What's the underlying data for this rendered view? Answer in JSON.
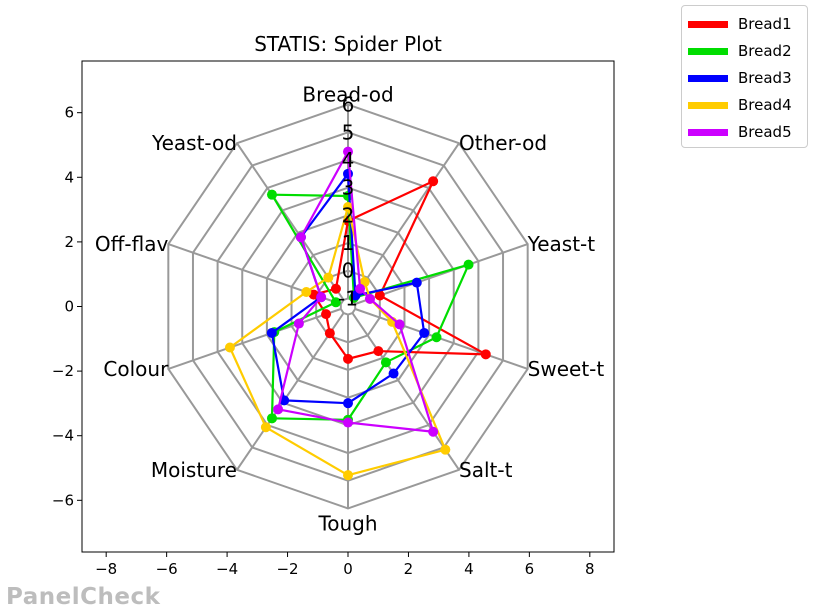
{
  "brand": "PanelCheck",
  "chart_data": {
    "type": "radar",
    "title": "STATIS: Spider Plot",
    "xlim": [
      -8.8,
      8.8
    ],
    "ylim": [
      -7.6,
      7.6
    ],
    "x_ticks": [
      -8,
      -6,
      -4,
      -2,
      0,
      2,
      4,
      6,
      8
    ],
    "y_ticks": [
      -6,
      -4,
      -2,
      0,
      2,
      4,
      6
    ],
    "x_tick_labels": [
      "−8",
      "−6",
      "−4",
      "−2",
      "0",
      "2",
      "4",
      "6",
      "8"
    ],
    "y_tick_labels": [
      "−6",
      "−4",
      "−2",
      "0",
      "2",
      "4",
      "6"
    ],
    "radial_min": -1,
    "radial_max": 6,
    "radial_ticks": [
      -1,
      0,
      1,
      2,
      3,
      4,
      5,
      6
    ],
    "radial_tick_labels": [
      "-1",
      "0",
      "1",
      "2",
      "3",
      "4",
      "5",
      "6"
    ],
    "grid": true,
    "legend_position": "outside-top-right",
    "attributes": [
      "Bread-od",
      "Other-od",
      "Yeast-t",
      "Sweet-t",
      "Salt-t",
      "Tough",
      "Moisture",
      "Colour",
      "Off-flav",
      "Yeast-od"
    ],
    "series": [
      {
        "name": "Bread1",
        "color": "#ff0000",
        "values": [
          1.8,
          4.3,
          0.0,
          4.3,
          0.7,
          0.6,
          -0.1,
          -0.4,
          0.1,
          -0.5
        ]
      },
      {
        "name": "Bread2",
        "color": "#00dd00",
        "values": [
          2.7,
          -0.9,
          3.6,
          2.3,
          1.2,
          2.8,
          3.7,
          1.7,
          -0.8,
          3.7
        ]
      },
      {
        "name": "Bread3",
        "color": "#0000ff",
        "values": [
          3.5,
          -0.8,
          1.5,
          1.8,
          1.7,
          2.2,
          2.9,
          1.8,
          -0.2,
          1.8
        ]
      },
      {
        "name": "Bread4",
        "color": "#ffcc00",
        "values": [
          2.3,
          -0.2,
          -0.4,
          0.5,
          5.1,
          4.8,
          4.1,
          3.5,
          0.4,
          0.0
        ]
      },
      {
        "name": "Bread5",
        "color": "#cc00ff",
        "values": [
          4.3,
          -0.5,
          -0.4,
          0.8,
          4.3,
          2.9,
          3.3,
          0.7,
          -0.2,
          1.8
        ]
      }
    ]
  }
}
